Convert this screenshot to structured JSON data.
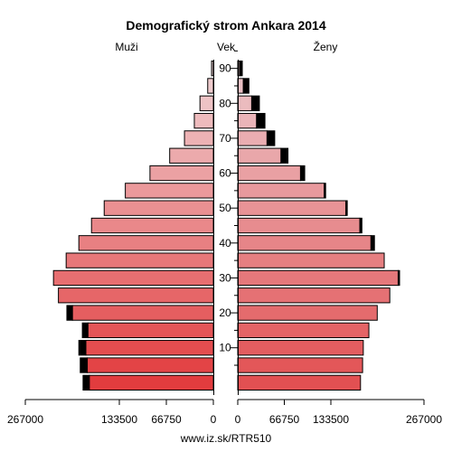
{
  "chart_data": {
    "type": "bar",
    "title": "Demografický strom Ankara 2014",
    "left_label": "Muži",
    "center_label": "Vek",
    "right_label": "Ženy",
    "source": "www.iz.sk/RTR510",
    "age_groups": [
      "0-4",
      "5-9",
      "10-14",
      "15-19",
      "20-24",
      "25-29",
      "30-34",
      "35-39",
      "40-44",
      "45-49",
      "50-54",
      "55-59",
      "60-64",
      "65-69",
      "70-74",
      "75-79",
      "80-84",
      "85-89",
      "90+"
    ],
    "center_ticks": [
      10,
      20,
      30,
      40,
      50,
      60,
      70,
      80,
      90
    ],
    "x_ticks_left": [
      "267000",
      "133500",
      "66750",
      "0"
    ],
    "x_ticks_right": [
      "0",
      "66750",
      "133500",
      "267000"
    ],
    "xlim": [
      0,
      267000
    ],
    "series": [
      {
        "name": "Muži",
        "values": [
          176000,
          179000,
          181000,
          178000,
          200000,
          220000,
          227000,
          209000,
          191000,
          173000,
          155000,
          125000,
          90000,
          62000,
          41000,
          27000,
          19000,
          8000,
          2500
        ],
        "extra": [
          9000,
          10000,
          10000,
          8000,
          8000,
          0,
          0,
          0,
          0,
          0,
          0,
          0,
          0,
          0,
          0,
          0,
          0,
          0,
          0
        ]
      },
      {
        "name": "Ženy",
        "values": [
          176000,
          179000,
          180000,
          188000,
          200000,
          218000,
          230000,
          210000,
          191000,
          175000,
          155000,
          124000,
          90000,
          62000,
          42000,
          27000,
          20000,
          8000,
          2500
        ],
        "extra": [
          0,
          0,
          0,
          0,
          0,
          0,
          2000,
          0,
          5000,
          3000,
          2000,
          2000,
          6000,
          10000,
          11000,
          12000,
          11000,
          8000,
          4000
        ]
      }
    ]
  }
}
